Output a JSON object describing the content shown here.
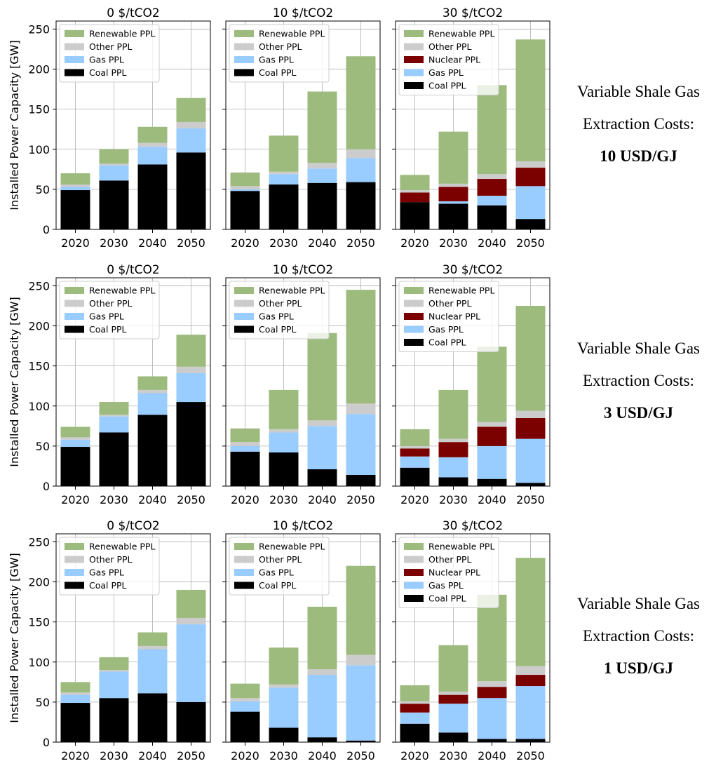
{
  "chart_data": {
    "type": "bar",
    "stacked": true,
    "ylabel": "Installed Power Capacity [GW]",
    "ylim": [
      0,
      260
    ],
    "yticks": [
      0,
      50,
      100,
      150,
      200,
      250
    ],
    "categories": [
      "2020",
      "2030",
      "2040",
      "2050"
    ],
    "grid": true,
    "legend_position": "upper-left",
    "colors": {
      "Coal PPL": "#000000",
      "Gas PPL": "#99ccff",
      "Nuclear PPL": "#7b0000",
      "Other PPL": "#cccccc",
      "Renewable PPL": "#9dbb7d"
    },
    "rows": [
      {
        "label_line1": "Variable Shale Gas",
        "label_line2": "Extraction Costs:",
        "label_line3": "10 USD/GJ",
        "panels": [
          {
            "title": "0 $/tCO2",
            "legend": [
              "Renewable PPL",
              "Other PPL",
              "Gas PPL",
              "Coal PPL"
            ],
            "series": [
              {
                "name": "Coal PPL",
                "values": [
                  49,
                  61,
                  81,
                  96
                ]
              },
              {
                "name": "Gas PPL",
                "values": [
                  4,
                  19,
                  22,
                  30
                ]
              },
              {
                "name": "Nuclear PPL",
                "values": [
                  0,
                  0,
                  0,
                  0
                ]
              },
              {
                "name": "Other PPL",
                "values": [
                  3,
                  2,
                  5,
                  8
                ]
              },
              {
                "name": "Renewable PPL",
                "values": [
                  14,
                  18,
                  20,
                  30
                ]
              }
            ]
          },
          {
            "title": "10 $/tCO2",
            "legend": [
              "Renewable PPL",
              "Other PPL",
              "Gas PPL",
              "Coal PPL"
            ],
            "series": [
              {
                "name": "Coal PPL",
                "values": [
                  48,
                  56,
                  58,
                  59
                ]
              },
              {
                "name": "Gas PPL",
                "values": [
                  2,
                  13,
                  18,
                  30
                ]
              },
              {
                "name": "Nuclear PPL",
                "values": [
                  0,
                  0,
                  0,
                  0
                ]
              },
              {
                "name": "Other PPL",
                "values": [
                  4,
                  3,
                  7,
                  11
                ]
              },
              {
                "name": "Renewable PPL",
                "values": [
                  17,
                  45,
                  89,
                  116
                ]
              }
            ]
          },
          {
            "title": "30 $/tCO2",
            "legend": [
              "Renewable PPL",
              "Other PPL",
              "Nuclear PPL",
              "Gas PPL",
              "Coal PPL"
            ],
            "series": [
              {
                "name": "Coal PPL",
                "values": [
                  34,
                  32,
                  30,
                  13
                ]
              },
              {
                "name": "Gas PPL",
                "values": [
                  0,
                  3,
                  12,
                  41
                ]
              },
              {
                "name": "Nuclear PPL",
                "values": [
                  12,
                  18,
                  21,
                  23
                ]
              },
              {
                "name": "Other PPL",
                "values": [
                  3,
                  4,
                  6,
                  8
                ]
              },
              {
                "name": "Renewable PPL",
                "values": [
                  19,
                  65,
                  111,
                  152
                ]
              }
            ]
          }
        ]
      },
      {
        "label_line1": "Variable Shale Gas",
        "label_line2": "Extraction Costs:",
        "label_line3": "3 USD/GJ",
        "panels": [
          {
            "title": "0 $/tCO2",
            "legend": [
              "Renewable PPL",
              "Other PPL",
              "Gas PPL",
              "Coal PPL"
            ],
            "series": [
              {
                "name": "Coal PPL",
                "values": [
                  49,
                  67,
                  89,
                  105
                ]
              },
              {
                "name": "Gas PPL",
                "values": [
                  9,
                  20,
                  27,
                  36
                ]
              },
              {
                "name": "Nuclear PPL",
                "values": [
                  0,
                  0,
                  0,
                  0
                ]
              },
              {
                "name": "Other PPL",
                "values": [
                  3,
                  2,
                  4,
                  8
                ]
              },
              {
                "name": "Renewable PPL",
                "values": [
                  13,
                  16,
                  17,
                  40
                ]
              }
            ]
          },
          {
            "title": "10 $/tCO2",
            "legend": [
              "Renewable PPL",
              "Other PPL",
              "Gas PPL",
              "Coal PPL"
            ],
            "series": [
              {
                "name": "Coal PPL",
                "values": [
                  43,
                  42,
                  21,
                  14
                ]
              },
              {
                "name": "Gas PPL",
                "values": [
                  7,
                  25,
                  54,
                  76
                ]
              },
              {
                "name": "Nuclear PPL",
                "values": [
                  0,
                  0,
                  0,
                  0
                ]
              },
              {
                "name": "Other PPL",
                "values": [
                  5,
                  4,
                  7,
                  13
                ]
              },
              {
                "name": "Renewable PPL",
                "values": [
                  17,
                  49,
                  109,
                  142
                ]
              }
            ]
          },
          {
            "title": "30 $/tCO2",
            "legend": [
              "Renewable PPL",
              "Other PPL",
              "Nuclear PPL",
              "Gas PPL",
              "Coal PPL"
            ],
            "series": [
              {
                "name": "Coal PPL",
                "values": [
                  23,
                  11,
                  9,
                  4
                ]
              },
              {
                "name": "Gas PPL",
                "values": [
                  14,
                  25,
                  41,
                  55
                ]
              },
              {
                "name": "Nuclear PPL",
                "values": [
                  10,
                  19,
                  24,
                  26
                ]
              },
              {
                "name": "Other PPL",
                "values": [
                  3,
                  4,
                  6,
                  9
                ]
              },
              {
                "name": "Renewable PPL",
                "values": [
                  21,
                  61,
                  94,
                  131
                ]
              }
            ]
          }
        ]
      },
      {
        "label_line1": "Variable Shale Gas",
        "label_line2": "Extraction Costs:",
        "label_line3": "1 USD/GJ",
        "panels": [
          {
            "title": "0 $/tCO2",
            "legend": [
              "Renewable PPL",
              "Other PPL",
              "Gas PPL",
              "Coal PPL"
            ],
            "series": [
              {
                "name": "Coal PPL",
                "values": [
                  49,
                  55,
                  61,
                  50
                ]
              },
              {
                "name": "Gas PPL",
                "values": [
                  10,
                  33,
                  55,
                  97
                ]
              },
              {
                "name": "Nuclear PPL",
                "values": [
                  0,
                  0,
                  0,
                  0
                ]
              },
              {
                "name": "Other PPL",
                "values": [
                  3,
                  2,
                  4,
                  8
                ]
              },
              {
                "name": "Renewable PPL",
                "values": [
                  13,
                  16,
                  17,
                  35
                ]
              }
            ]
          },
          {
            "title": "10 $/tCO2",
            "legend": [
              "Renewable PPL",
              "Other PPL",
              "Gas PPL",
              "Coal PPL"
            ],
            "series": [
              {
                "name": "Coal PPL",
                "values": [
                  38,
                  18,
                  6,
                  2
                ]
              },
              {
                "name": "Gas PPL",
                "values": [
                  13,
                  50,
                  78,
                  94
                ]
              },
              {
                "name": "Nuclear PPL",
                "values": [
                  0,
                  0,
                  0,
                  0
                ]
              },
              {
                "name": "Other PPL",
                "values": [
                  4,
                  4,
                  7,
                  13
                ]
              },
              {
                "name": "Renewable PPL",
                "values": [
                  18,
                  46,
                  78,
                  111
                ]
              }
            ]
          },
          {
            "title": "30 $/tCO2",
            "legend": [
              "Renewable PPL",
              "Other PPL",
              "Nuclear PPL",
              "Gas PPL",
              "Coal PPL"
            ],
            "series": [
              {
                "name": "Coal PPL",
                "values": [
                  23,
                  12,
                  4,
                  4
                ]
              },
              {
                "name": "Gas PPL",
                "values": [
                  14,
                  36,
                  51,
                  66
                ]
              },
              {
                "name": "Nuclear PPL",
                "values": [
                  11,
                  11,
                  14,
                  14
                ]
              },
              {
                "name": "Other PPL",
                "values": [
                  3,
                  4,
                  7,
                  11
                ]
              },
              {
                "name": "Renewable PPL",
                "values": [
                  20,
                  58,
                  108,
                  135
                ]
              }
            ]
          }
        ]
      }
    ]
  }
}
